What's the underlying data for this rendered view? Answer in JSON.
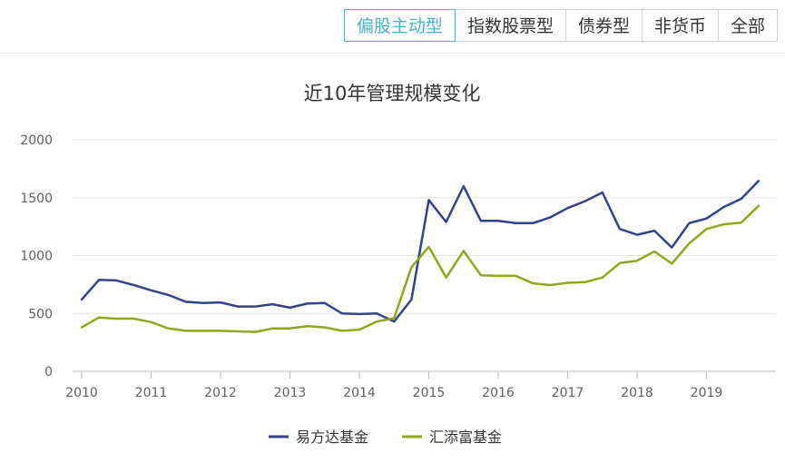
{
  "tabs": [
    {
      "label": "偏股主动型",
      "active": true
    },
    {
      "label": "指数股票型",
      "active": false
    },
    {
      "label": "债券型",
      "active": false
    },
    {
      "label": "非货币",
      "active": false
    },
    {
      "label": "全部",
      "active": false
    }
  ],
  "colors": {
    "accent": "#4ab3cc",
    "series1": "#33428d",
    "series2": "#8ea81a",
    "grid": "#e6e6e6"
  },
  "chart_data": {
    "type": "line",
    "title": "近10年管理规模变化",
    "ylim": [
      0,
      2000
    ],
    "yticks": [
      0,
      500,
      1000,
      1500,
      2000
    ],
    "xlim": [
      2010,
      2019.95
    ],
    "xticks": [
      2010,
      2011,
      2012,
      2013,
      2014,
      2015,
      2016,
      2017,
      2018,
      2019
    ],
    "grid": true,
    "legend_position": "bottom",
    "series": [
      {
        "name": "易方达基金",
        "color": "#33428d",
        "x": [
          2010.0,
          2010.25,
          2010.5,
          2010.75,
          2011.0,
          2011.25,
          2011.5,
          2011.75,
          2012.0,
          2012.25,
          2012.5,
          2012.75,
          2013.0,
          2013.25,
          2013.5,
          2013.75,
          2014.0,
          2014.25,
          2014.5,
          2014.75,
          2015.0,
          2015.25,
          2015.5,
          2015.75,
          2016.0,
          2016.25,
          2016.5,
          2016.75,
          2017.0,
          2017.25,
          2017.5,
          2017.75,
          2018.0,
          2018.25,
          2018.5,
          2018.75,
          2019.0,
          2019.25,
          2019.5,
          2019.75
        ],
        "values": [
          620,
          790,
          785,
          745,
          700,
          660,
          600,
          590,
          595,
          560,
          560,
          580,
          550,
          585,
          590,
          500,
          495,
          500,
          430,
          620,
          1480,
          1290,
          1600,
          1300,
          1300,
          1280,
          1280,
          1330,
          1410,
          1470,
          1545,
          1230,
          1180,
          1215,
          1070,
          1280,
          1320,
          1420,
          1490,
          1645
        ]
      },
      {
        "name": "汇添富基金",
        "color": "#8ea81a",
        "x": [
          2010.0,
          2010.25,
          2010.5,
          2010.75,
          2011.0,
          2011.25,
          2011.5,
          2011.75,
          2012.0,
          2012.25,
          2012.5,
          2012.75,
          2013.0,
          2013.25,
          2013.5,
          2013.75,
          2014.0,
          2014.25,
          2014.5,
          2014.75,
          2015.0,
          2015.25,
          2015.5,
          2015.75,
          2016.0,
          2016.25,
          2016.5,
          2016.75,
          2017.0,
          2017.25,
          2017.5,
          2017.75,
          2018.0,
          2018.25,
          2018.5,
          2018.75,
          2019.0,
          2019.25,
          2019.5,
          2019.75
        ],
        "values": [
          380,
          465,
          455,
          455,
          425,
          370,
          350,
          350,
          350,
          345,
          340,
          370,
          370,
          390,
          380,
          350,
          360,
          430,
          460,
          900,
          1075,
          810,
          1040,
          830,
          825,
          825,
          760,
          745,
          765,
          770,
          810,
          935,
          955,
          1035,
          930,
          1105,
          1230,
          1270,
          1285,
          1430
        ]
      }
    ]
  }
}
